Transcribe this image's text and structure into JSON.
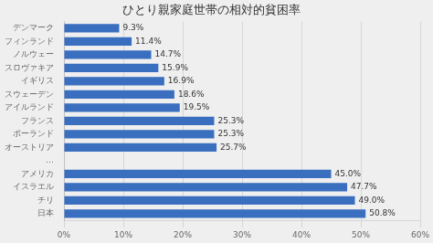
{
  "chart_data": {
    "type": "bar",
    "orientation": "horizontal",
    "title": "ひとり親家庭世帯の相対的貧困率",
    "categories": [
      "デンマーク",
      "フィンランド",
      "ノルウェー",
      "スロヴァキア",
      "イギリス",
      "スウェーデン",
      "アイルランド",
      "フランス",
      "ポーランド",
      "オーストリア",
      "…",
      "アメリカ",
      "イスラエル",
      "チリ",
      "日本"
    ],
    "values": [
      9.3,
      11.4,
      14.7,
      15.9,
      16.9,
      18.6,
      19.5,
      25.3,
      25.3,
      25.7,
      null,
      45.0,
      47.7,
      49.0,
      50.8
    ],
    "value_labels": [
      "9.3%",
      "11.4%",
      "14.7%",
      "15.9%",
      "16.9%",
      "18.6%",
      "19.5%",
      "25.3%",
      "25.3%",
      "25.7%",
      null,
      "45.0%",
      "47.7%",
      "49.0%",
      "50.8%"
    ],
    "data_labels": true,
    "color": "#3A6FBF",
    "xlim": [
      0,
      60
    ],
    "xticks": [
      {
        "value": 0,
        "label": "0%"
      },
      {
        "value": 10,
        "label": "10%"
      },
      {
        "value": 20,
        "label": "20%"
      },
      {
        "value": 30,
        "label": "30%"
      },
      {
        "value": 40,
        "label": "40%"
      },
      {
        "value": 50,
        "label": "50%"
      },
      {
        "value": 60,
        "label": "60%"
      }
    ],
    "grid": true
  }
}
